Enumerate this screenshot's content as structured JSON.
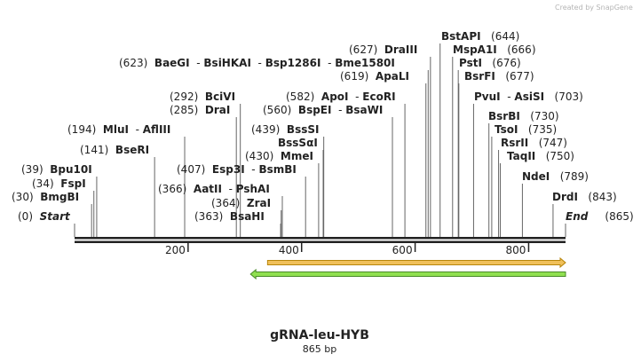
{
  "watermark": "Created by SnapGene",
  "sequence": {
    "name": "gRNA-leu-HYB",
    "length_label": "865 bp",
    "length": 865
  },
  "ticks": [
    {
      "pos": 200,
      "label": "200"
    },
    {
      "pos": 400,
      "label": "400"
    },
    {
      "pos": 600,
      "label": "600"
    },
    {
      "pos": 800,
      "label": "800"
    }
  ],
  "features": [
    {
      "name": "feature-orange",
      "start": 340,
      "end": 865,
      "direction": "forward",
      "fill": "#f0c05a",
      "stroke": "#b8860b"
    },
    {
      "name": "feature-green",
      "start": 310,
      "end": 865,
      "direction": "reverse",
      "fill": "#90e050",
      "stroke": "#4a8a2a"
    }
  ],
  "sites": [
    {
      "num": "(0)",
      "parts": [
        "Start"
      ],
      "pos": 0,
      "italic": true
    },
    {
      "num": "(30)",
      "parts": [
        "BmgBI"
      ],
      "pos": 30
    },
    {
      "num": "(34)",
      "parts": [
        "FspI"
      ],
      "pos": 34
    },
    {
      "num": "(39)",
      "parts": [
        "Bpu10I"
      ],
      "pos": 39
    },
    {
      "num": "(141)",
      "parts": [
        "BseRI"
      ],
      "pos": 141
    },
    {
      "num": "(194)",
      "parts": [
        "MluI",
        "AflIII"
      ],
      "pos": 194
    },
    {
      "num": "(285)",
      "parts": [
        "DraI"
      ],
      "pos": 285
    },
    {
      "num": "(292)",
      "parts": [
        "BciVI"
      ],
      "pos": 292
    },
    {
      "num": "(363)",
      "parts": [
        "BsaHI"
      ],
      "pos": 363
    },
    {
      "num": "(364)",
      "parts": [
        "ZraI"
      ],
      "pos": 364
    },
    {
      "num": "(366)",
      "parts": [
        "AatII",
        "PshAI"
      ],
      "pos": 366
    },
    {
      "num": "(407)",
      "parts": [
        "Esp3I",
        "BsmBI"
      ],
      "pos": 407
    },
    {
      "num": "(430)",
      "parts": [
        "MmeI"
      ],
      "pos": 430
    },
    {
      "num": "",
      "parts": [
        "BssSαI"
      ],
      "pos": 438,
      "numAfter": false
    },
    {
      "num": "(439)",
      "parts": [
        "BssSI"
      ],
      "pos": 439
    },
    {
      "num": "(560)",
      "parts": [
        "BspEI",
        "BsaWI"
      ],
      "pos": 560
    },
    {
      "num": "(582)",
      "parts": [
        "ApoI",
        "EcoRI"
      ],
      "pos": 582
    },
    {
      "num": "(619)",
      "parts": [
        "ApaLI"
      ],
      "pos": 619
    },
    {
      "num": "(623)",
      "parts": [
        "BaeGI",
        "BsiHKAI",
        "Bsp1286I",
        "Bme1580I"
      ],
      "pos": 623
    },
    {
      "num": "(627)",
      "parts": [
        "DraIII"
      ],
      "pos": 627
    },
    {
      "num": "(644)",
      "parts": [
        "BstAPI"
      ],
      "pos": 644,
      "numAfter": true
    },
    {
      "num": "(666)",
      "parts": [
        "MspA1I"
      ],
      "pos": 666,
      "numAfter": true
    },
    {
      "num": "(676)",
      "parts": [
        "PstI"
      ],
      "pos": 676,
      "numAfter": true
    },
    {
      "num": "(677)",
      "parts": [
        "BsrFI"
      ],
      "pos": 677,
      "numAfter": true
    },
    {
      "num": "(703)",
      "parts": [
        "PvuI",
        "AsiSI"
      ],
      "pos": 703,
      "numAfter": true
    },
    {
      "num": "(730)",
      "parts": [
        "BsrBI"
      ],
      "pos": 730,
      "numAfter": true
    },
    {
      "num": "(735)",
      "parts": [
        "TsoI"
      ],
      "pos": 735,
      "numAfter": true
    },
    {
      "num": "(747)",
      "parts": [
        "RsrII"
      ],
      "pos": 747,
      "numAfter": true
    },
    {
      "num": "(750)",
      "parts": [
        "TaqII"
      ],
      "pos": 750,
      "numAfter": true
    },
    {
      "num": "(789)",
      "parts": [
        "NdeI"
      ],
      "pos": 789,
      "numAfter": true
    },
    {
      "num": "(843)",
      "parts": [
        "DrdI"
      ],
      "pos": 843,
      "numAfter": true
    },
    {
      "num": "(865)",
      "parts": [
        "End"
      ],
      "pos": 865,
      "numAfter": true,
      "italic": true
    }
  ]
}
